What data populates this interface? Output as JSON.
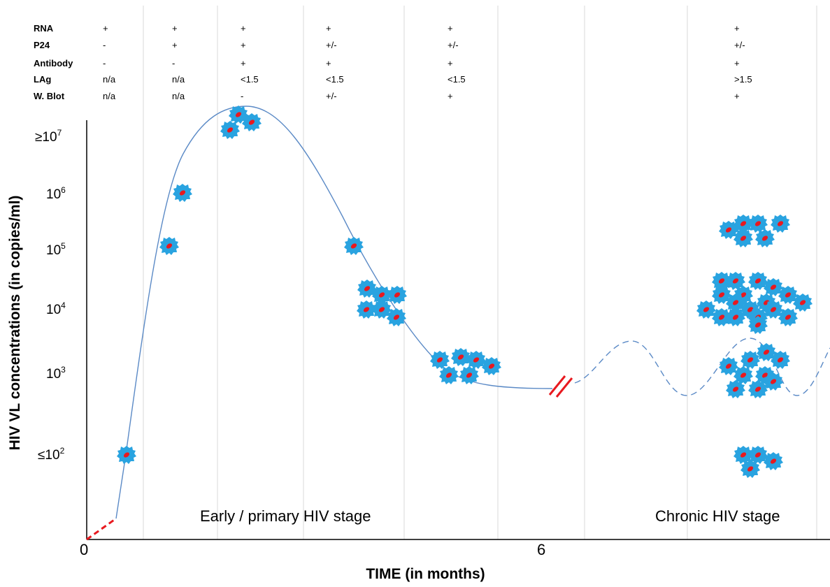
{
  "table": {
    "rows": [
      {
        "label": "RNA",
        "values": [
          "+",
          "+",
          "+",
          "+",
          "+",
          "+"
        ]
      },
      {
        "label": "P24",
        "values": [
          "-",
          "+",
          "+",
          "+/-",
          "+/-",
          "+/-"
        ]
      },
      {
        "label": "Antibody",
        "values": [
          "-",
          "-",
          "+",
          "+",
          "+",
          "+"
        ]
      },
      {
        "label": "LAg",
        "values": [
          "n/a",
          "n/a",
          "<1.5",
          "<1.5",
          "<1.5",
          ">1.5"
        ]
      },
      {
        "label": "W. Blot",
        "values": [
          "n/a",
          "n/a",
          "-",
          "+/-",
          "+",
          "+"
        ]
      }
    ]
  },
  "axes": {
    "y_title": "HIV VL concentrations (in copies/ml)",
    "x_title": "TIME (in months)",
    "y_ticks": [
      {
        "prefix": "≥10",
        "exp": "7"
      },
      {
        "prefix": "10",
        "exp": "6"
      },
      {
        "prefix": "10",
        "exp": "5"
      },
      {
        "prefix": "10",
        "exp": "4"
      },
      {
        "prefix": "10",
        "exp": "3"
      },
      {
        "prefix": "≤10",
        "exp": "2"
      }
    ],
    "x_ticks": [
      "0",
      "6"
    ]
  },
  "stages": {
    "early": "Early  / primary HIV stage",
    "chronic": "Chronic HIV stage"
  },
  "colors": {
    "curve": "#5b8ac6",
    "virus_body": "#29a3e0",
    "virus_core": "#e8191f",
    "break_mark": "#e8191f",
    "gridline": "#d9d9d9"
  }
}
